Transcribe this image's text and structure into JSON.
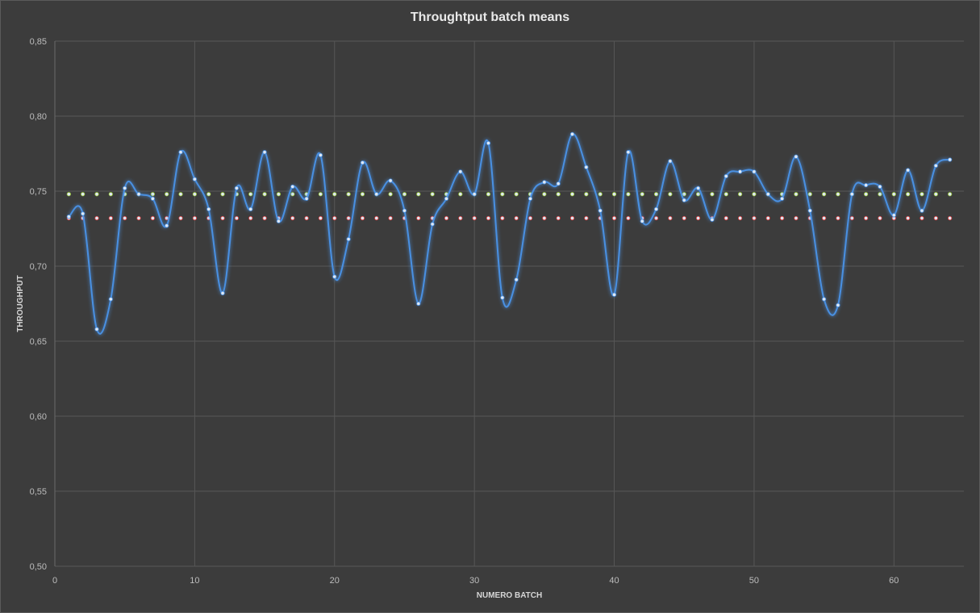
{
  "chart_data": {
    "type": "line",
    "title": "Throughtput batch means",
    "xlabel": "NUMERO BATCH",
    "ylabel": "THROUGHPUT",
    "xlim": [
      0,
      65
    ],
    "ylim": [
      0.5,
      0.85
    ],
    "x_ticks": [
      0,
      10,
      20,
      30,
      40,
      50,
      60
    ],
    "y_ticks": [
      0.5,
      0.55,
      0.6,
      0.65,
      0.7,
      0.75,
      0.8,
      0.85
    ],
    "x_tick_labels": [
      "0",
      "10",
      "20",
      "30",
      "40",
      "50",
      "60"
    ],
    "y_tick_labels": [
      "0,50",
      "0,55",
      "0,60",
      "0,65",
      "0,70",
      "0,75",
      "0,80",
      "0,85"
    ],
    "grid": true,
    "smooth": true,
    "x": [
      1,
      2,
      3,
      4,
      5,
      6,
      7,
      8,
      9,
      10,
      11,
      12,
      13,
      14,
      15,
      16,
      17,
      18,
      19,
      20,
      21,
      22,
      23,
      24,
      25,
      26,
      27,
      28,
      29,
      30,
      31,
      32,
      33,
      34,
      35,
      36,
      37,
      38,
      39,
      40,
      41,
      42,
      43,
      44,
      45,
      46,
      47,
      48,
      49,
      50,
      51,
      52,
      53,
      54,
      55,
      56,
      57,
      58,
      59,
      60,
      61,
      62,
      63,
      64
    ],
    "series": [
      {
        "color": "#4a90e2",
        "values": [
          0.733,
          0.735,
          0.658,
          0.678,
          0.752,
          0.748,
          0.745,
          0.727,
          0.776,
          0.758,
          0.738,
          0.682,
          0.752,
          0.738,
          0.776,
          0.73,
          0.753,
          0.745,
          0.774,
          0.693,
          0.718,
          0.769,
          0.748,
          0.757,
          0.737,
          0.675,
          0.728,
          0.745,
          0.763,
          0.748,
          0.782,
          0.679,
          0.691,
          0.745,
          0.756,
          0.755,
          0.788,
          0.766,
          0.737,
          0.681,
          0.776,
          0.73,
          0.738,
          0.77,
          0.744,
          0.752,
          0.731,
          0.76,
          0.763,
          0.763,
          0.748,
          0.745,
          0.773,
          0.737,
          0.678,
          0.674,
          0.748,
          0.754,
          0.753,
          0.734,
          0.764,
          0.737,
          0.767,
          0.771
        ]
      },
      {
        "color": "#9acd32",
        "values": [
          0.748,
          0.748,
          0.748,
          0.748,
          0.748,
          0.748,
          0.748,
          0.748,
          0.748,
          0.748,
          0.748,
          0.748,
          0.748,
          0.748,
          0.748,
          0.748,
          0.748,
          0.748,
          0.748,
          0.748,
          0.748,
          0.748,
          0.748,
          0.748,
          0.748,
          0.748,
          0.748,
          0.748,
          0.748,
          0.748,
          0.748,
          0.748,
          0.748,
          0.748,
          0.748,
          0.748,
          0.748,
          0.748,
          0.748,
          0.748,
          0.748,
          0.748,
          0.748,
          0.748,
          0.748,
          0.748,
          0.748,
          0.748,
          0.748,
          0.748,
          0.748,
          0.748,
          0.748,
          0.748,
          0.748,
          0.748,
          0.748,
          0.748,
          0.748,
          0.748,
          0.748,
          0.748,
          0.748,
          0.748
        ]
      },
      {
        "color": "#e23c3c",
        "values": [
          0.732,
          0.732,
          0.732,
          0.732,
          0.732,
          0.732,
          0.732,
          0.732,
          0.732,
          0.732,
          0.732,
          0.732,
          0.732,
          0.732,
          0.732,
          0.732,
          0.732,
          0.732,
          0.732,
          0.732,
          0.732,
          0.732,
          0.732,
          0.732,
          0.732,
          0.732,
          0.732,
          0.732,
          0.732,
          0.732,
          0.732,
          0.732,
          0.732,
          0.732,
          0.732,
          0.732,
          0.732,
          0.732,
          0.732,
          0.732,
          0.732,
          0.732,
          0.732,
          0.732,
          0.732,
          0.732,
          0.732,
          0.732,
          0.732,
          0.732,
          0.732,
          0.732,
          0.732,
          0.732,
          0.732,
          0.732,
          0.732,
          0.732,
          0.732,
          0.732,
          0.732,
          0.732,
          0.732,
          0.732
        ]
      }
    ]
  }
}
